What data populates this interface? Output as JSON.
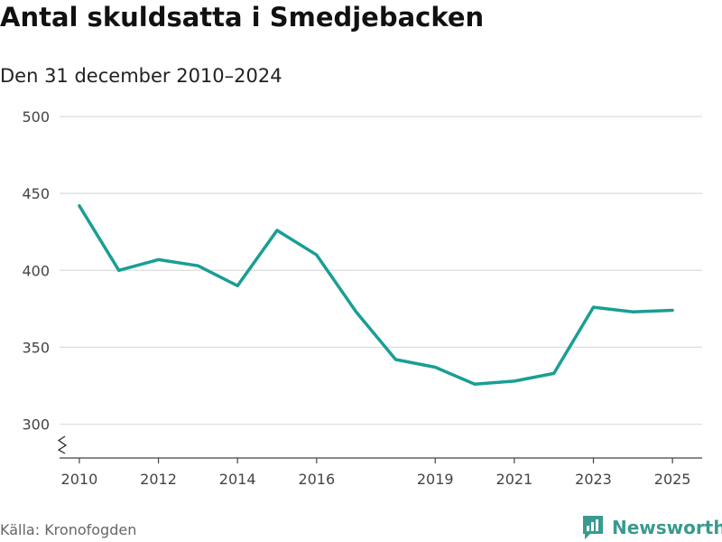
{
  "title": "Antal skuldsatta i Smedjebacken",
  "subtitle": "Den 31 december 2010–2024",
  "source": "Källa: Kronofogden",
  "brand": "Newsworthy",
  "colors": {
    "line": "#1a9e94",
    "grid": "#dddddd",
    "axis": "#444444",
    "brand": "#3a9a8e"
  },
  "chart_data": {
    "type": "line",
    "title": "Antal skuldsatta i Smedjebacken",
    "subtitle": "Den 31 december 2010–2024",
    "xlabel": "",
    "ylabel": "",
    "x": [
      2010,
      2011,
      2012,
      2013,
      2014,
      2015,
      2016,
      2017,
      2018,
      2019,
      2020,
      2021,
      2022,
      2023,
      2024,
      2025
    ],
    "series": [
      {
        "name": "Antal skuldsatta",
        "values": [
          442,
          400,
          407,
          403,
          390,
          426,
          410,
          373,
          342,
          337,
          326,
          328,
          333,
          376,
          373,
          374
        ]
      }
    ],
    "xlim": [
      2009.5,
      2025.75
    ],
    "ylim": [
      278,
      500
    ],
    "yticks": [
      300,
      350,
      400,
      450,
      500
    ],
    "xticks": [
      2010,
      2012,
      2014,
      2016,
      2019,
      2021,
      2023,
      2025
    ],
    "axis_break": true,
    "grid": true
  }
}
